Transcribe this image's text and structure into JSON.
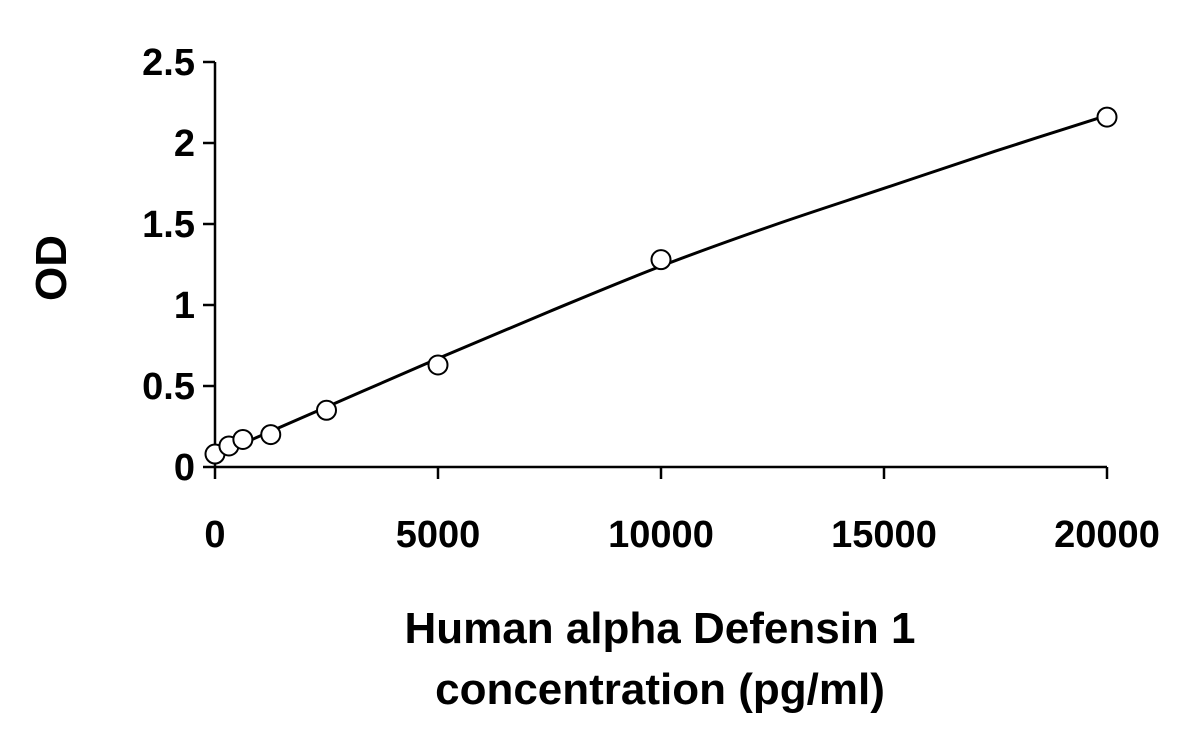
{
  "chart_data": {
    "type": "scatter",
    "title": "",
    "xlabel_lines": [
      "Human alpha Defensin 1",
      "concentration (pg/ml)"
    ],
    "ylabel": "OD",
    "xlim": [
      0,
      20000
    ],
    "ylim": [
      0,
      2.5
    ],
    "x_ticks": [
      0,
      5000,
      10000,
      15000,
      20000
    ],
    "x_tick_labels": [
      "0",
      "5000",
      "10000",
      "15000",
      "20000"
    ],
    "y_ticks": [
      0,
      0.5,
      1,
      1.5,
      2,
      2.5
    ],
    "y_tick_labels": [
      "0",
      "0.5",
      "1",
      "1.5",
      "2",
      "2.5"
    ],
    "grid": false,
    "legend": "none",
    "series": [
      {
        "marker": "open-circle",
        "points": [
          {
            "x": 0,
            "y": 0.08
          },
          {
            "x": 312.5,
            "y": 0.13
          },
          {
            "x": 625,
            "y": 0.17
          },
          {
            "x": 1250,
            "y": 0.2
          },
          {
            "x": 2500,
            "y": 0.35
          },
          {
            "x": 5000,
            "y": 0.63
          },
          {
            "x": 10000,
            "y": 1.28
          },
          {
            "x": 20000,
            "y": 2.16
          }
        ]
      }
    ],
    "fit_curve": {
      "style": "solid-line",
      "points": [
        {
          "x": 0,
          "y": 0.07
        },
        {
          "x": 2500,
          "y": 0.37
        },
        {
          "x": 5000,
          "y": 0.67
        },
        {
          "x": 7500,
          "y": 0.96
        },
        {
          "x": 10000,
          "y": 1.24
        },
        {
          "x": 12500,
          "y": 1.49
        },
        {
          "x": 15000,
          "y": 1.72
        },
        {
          "x": 17500,
          "y": 1.95
        },
        {
          "x": 20000,
          "y": 2.17
        }
      ]
    },
    "colors": {
      "axis": "#000000",
      "marker_stroke": "#000000",
      "marker_fill": "#ffffff",
      "curve": "#000000",
      "background": "#ffffff"
    }
  }
}
